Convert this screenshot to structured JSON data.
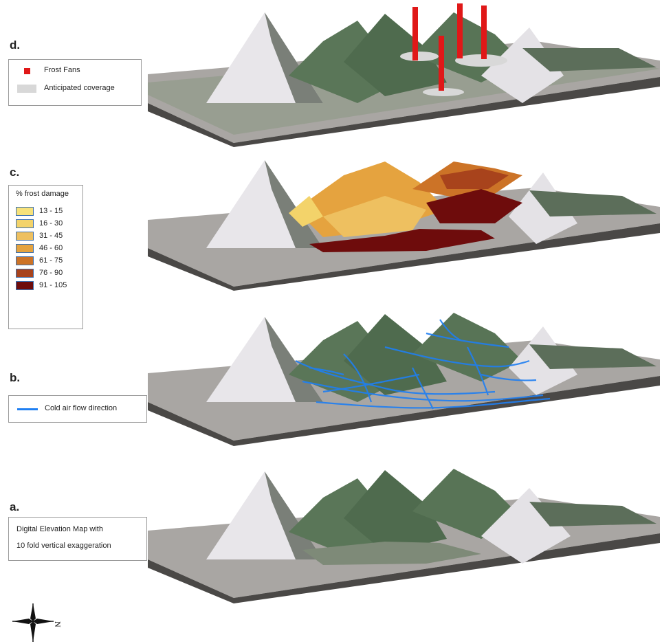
{
  "panels": {
    "d": {
      "letter": "d.",
      "legend": {
        "frost_fans_label": "Frost Fans",
        "coverage_label": "Anticipated coverage"
      }
    },
    "c": {
      "letter": "c.",
      "legend": {
        "title": "% frost damage",
        "classes": [
          {
            "label": "13 - 15",
            "color": "#f7e27a"
          },
          {
            "label": "16 - 30",
            "color": "#f3d36a"
          },
          {
            "label": "31 - 45",
            "color": "#eec060"
          },
          {
            "label": "46 - 60",
            "color": "#e5a33f"
          },
          {
            "label": "61 - 75",
            "color": "#cc7327"
          },
          {
            "label": "76 - 90",
            "color": "#a8431c"
          },
          {
            "label": "91 - 105",
            "color": "#6e0c0c"
          }
        ]
      }
    },
    "b": {
      "letter": "b.",
      "legend": {
        "flow_label": "Cold air flow direction"
      }
    },
    "a": {
      "letter": "a.",
      "legend": {
        "line1": "Digital Elevation Map with",
        "line2": "10 fold vertical exaggeration"
      }
    }
  },
  "compass": {
    "north_glyph": "N"
  },
  "colors": {
    "fan_red": "#e01818",
    "flow_blue": "#1f7ff2",
    "coverage_grey": "#d8d8d8",
    "terrain_green": "#5a7658",
    "terrain_snow": "#e8e6ea",
    "slab": "#a9a6a3"
  }
}
